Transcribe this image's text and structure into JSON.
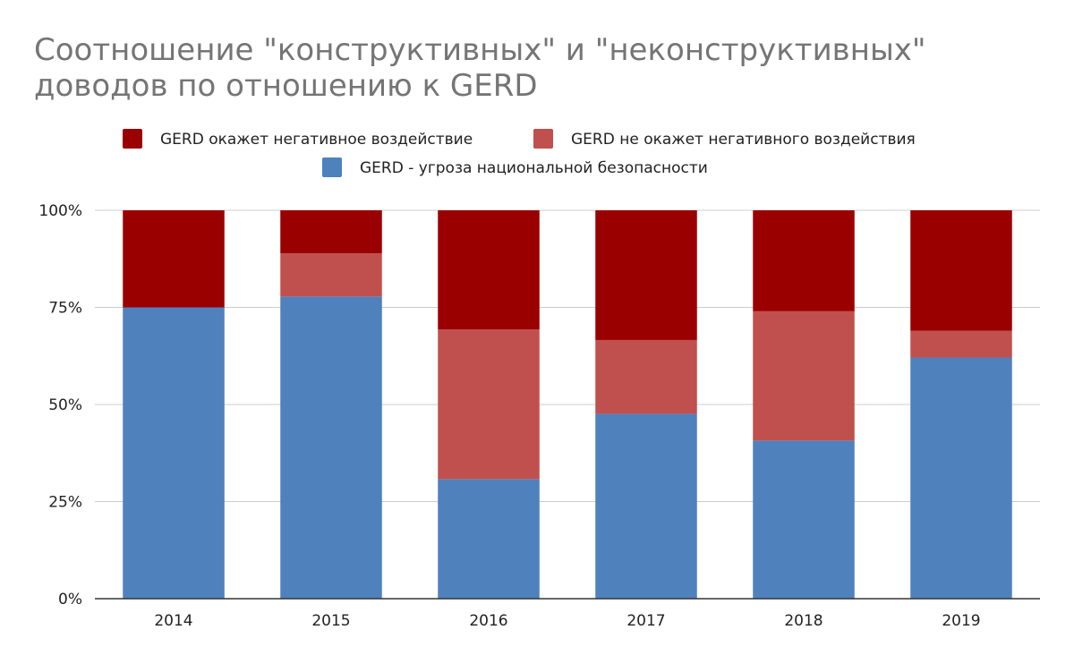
{
  "chart_data": {
    "type": "bar",
    "stacked": true,
    "title": "Соотношение \"конструктивных\" и \"неконструктивных\" доводов по отношению к GERD",
    "xlabel": "",
    "ylabel": "",
    "categories": [
      "2014",
      "2015",
      "2016",
      "2017",
      "2018",
      "2019"
    ],
    "ylim": [
      0,
      100
    ],
    "yticks": [
      0,
      25,
      50,
      75,
      100
    ],
    "ytick_labels": [
      "0%",
      "25%",
      "50%",
      "75%",
      "100%"
    ],
    "grid": true,
    "legend_position": "top",
    "series": [
      {
        "name": "GERD - угроза национальной безопасности",
        "color": "#4f81bd",
        "values": [
          75,
          77.8,
          30.8,
          47.6,
          40.7,
          62.1
        ]
      },
      {
        "name": "GERD не окажет негативного воздействия",
        "color": "#c0504d",
        "values": [
          0,
          11.1,
          38.5,
          19.0,
          33.3,
          6.9
        ]
      },
      {
        "name": "GERD окажет негативное воздействие",
        "color": "#9b0000",
        "values": [
          25,
          11.1,
          30.7,
          33.4,
          26.0,
          31.0
        ]
      }
    ],
    "legend_order": [
      2,
      1,
      0
    ]
  }
}
